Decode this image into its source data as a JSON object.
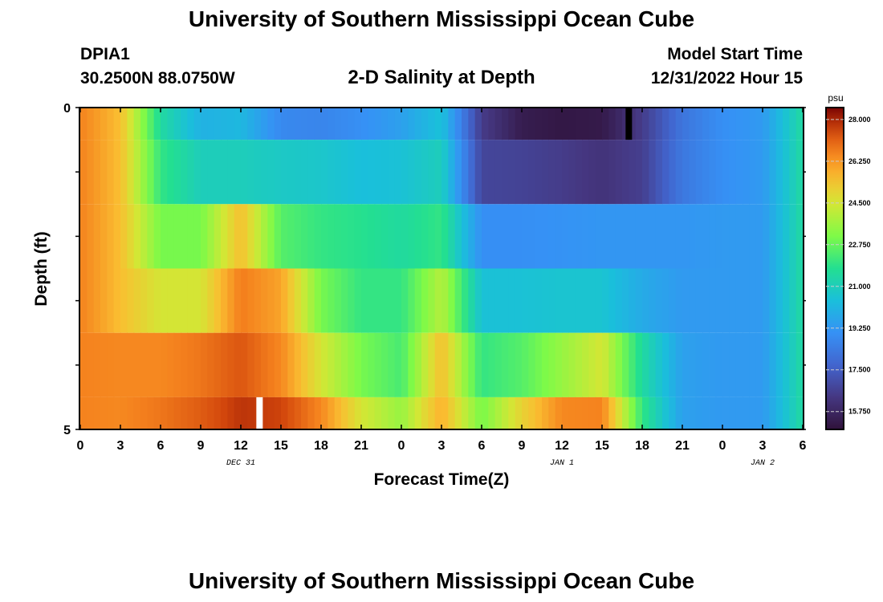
{
  "header": {
    "title": "University of Southern Mississippi Ocean Cube",
    "station_id": "DPIA1",
    "coordinates": "30.2500N  88.0750W",
    "chart_title": "2-D Salinity at Depth",
    "model_start_label": "Model Start Time",
    "model_start_value": "12/31/2022 Hour 15"
  },
  "footer": {
    "title": "University of Southern Mississippi Ocean Cube"
  },
  "chart_data": {
    "type": "heatmap",
    "title": "2-D Salinity at Depth",
    "xlabel": "Forecast Time(Z)",
    "ylabel": "Depth (ft)",
    "colorbar_label": "psu",
    "colorbar_ticks": [
      "28.000",
      "26.250",
      "24.500",
      "22.750",
      "21.000",
      "19.250",
      "17.500",
      "15.750"
    ],
    "colorbar_range": [
      15.0,
      28.5
    ],
    "x_tick_labels": [
      "0",
      "3",
      "6",
      "9",
      "12",
      "15",
      "18",
      "21",
      "0",
      "3",
      "6",
      "9",
      "12",
      "15",
      "18",
      "21",
      "0",
      "3",
      "6"
    ],
    "x_date_labels": [
      {
        "text": "DEC 31",
        "hour": 12
      },
      {
        "text": "JAN 1",
        "hour": 36
      },
      {
        "text": "JAN 2",
        "hour": 51
      }
    ],
    "x_range_hours": [
      0,
      54
    ],
    "y_tick_labels": [
      "0",
      "5"
    ],
    "y_range": [
      0,
      5
    ],
    "grid": false,
    "time_hours": [
      0,
      3,
      6,
      9,
      12,
      15,
      18,
      21,
      24,
      27,
      30,
      33,
      36,
      39,
      42,
      45,
      48,
      51,
      54
    ],
    "layers": [
      {
        "depth_from": 0,
        "depth_to": 0.5,
        "values": [
          26.6,
          25.5,
          21.5,
          20.0,
          20.2,
          18.8,
          18.7,
          19.0,
          19.5,
          20.5,
          16.5,
          15.4,
          15.2,
          15.3,
          16.5,
          18.2,
          19.0,
          19.3,
          21.5
        ]
      },
      {
        "depth_from": 0.5,
        "depth_to": 1.5,
        "values": [
          26.6,
          25.5,
          22.0,
          21.0,
          21.0,
          20.8,
          20.7,
          20.4,
          20.5,
          21.0,
          16.8,
          16.7,
          16.5,
          16.2,
          16.6,
          18.3,
          19.0,
          19.3,
          21.5
        ]
      },
      {
        "depth_from": 1.5,
        "depth_to": 2.5,
        "values": [
          26.6,
          25.5,
          23.0,
          23.0,
          25.5,
          22.5,
          22.0,
          21.8,
          21.5,
          22.0,
          19.0,
          19.0,
          19.1,
          19.2,
          19.2,
          19.2,
          19.3,
          19.3,
          21.5
        ]
      },
      {
        "depth_from": 2.5,
        "depth_to": 3.5,
        "values": [
          26.6,
          25.5,
          24.5,
          24.5,
          26.7,
          26.0,
          23.0,
          22.0,
          22.0,
          24.0,
          20.5,
          20.5,
          20.6,
          20.6,
          19.8,
          19.3,
          19.3,
          19.3,
          21.5
        ]
      },
      {
        "depth_from": 3.5,
        "depth_to": 4.5,
        "values": [
          26.6,
          26.5,
          26.5,
          26.8,
          27.3,
          26.5,
          24.5,
          23.0,
          22.3,
          25.5,
          22.0,
          22.5,
          23.5,
          24.5,
          21.5,
          19.5,
          19.3,
          19.3,
          21.5
        ]
      },
      {
        "depth_from": 4.5,
        "depth_to": 5.0,
        "values": [
          26.6,
          26.5,
          26.8,
          27.2,
          27.8,
          27.6,
          26.5,
          24.5,
          23.5,
          25.8,
          23.0,
          25.0,
          26.5,
          26.6,
          22.0,
          19.5,
          19.3,
          19.3,
          21.5
        ]
      }
    ],
    "missing_markers": [
      {
        "hour": 13.4,
        "depth_from": 4.5,
        "depth_to": 5.0,
        "color": "#ffffff"
      },
      {
        "hour": 41.0,
        "depth_from": 0,
        "depth_to": 0.5,
        "color": "#000000"
      }
    ]
  }
}
